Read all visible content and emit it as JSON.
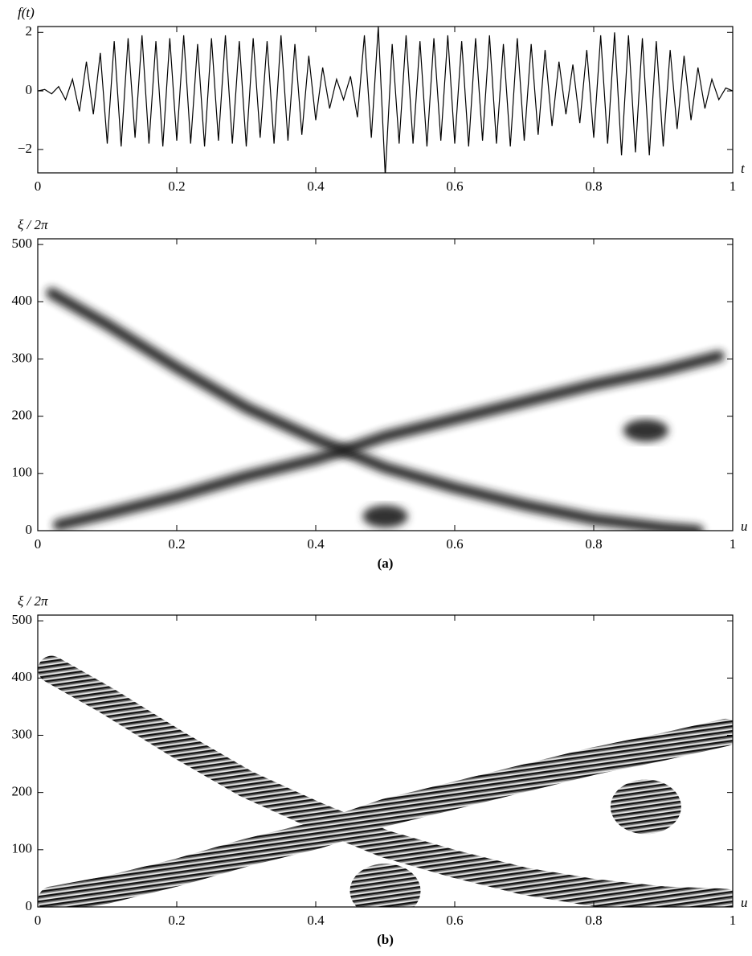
{
  "chart_data": [
    {
      "type": "line",
      "ylabel": "f(t)",
      "xlabel": "t",
      "x": [
        0,
        0.01,
        0.02,
        0.03,
        0.04,
        0.05,
        0.06,
        0.07,
        0.08,
        0.09,
        0.1,
        0.11,
        0.12,
        0.13,
        0.14,
        0.15,
        0.16,
        0.17,
        0.18,
        0.19,
        0.2,
        0.21,
        0.22,
        0.23,
        0.24,
        0.25,
        0.26,
        0.27,
        0.28,
        0.29,
        0.3,
        0.31,
        0.32,
        0.33,
        0.34,
        0.35,
        0.36,
        0.37,
        0.38,
        0.39,
        0.4,
        0.41,
        0.42,
        0.43,
        0.44,
        0.45,
        0.46,
        0.47,
        0.48,
        0.49,
        0.5,
        0.51,
        0.52,
        0.53,
        0.54,
        0.55,
        0.56,
        0.57,
        0.58,
        0.59,
        0.6,
        0.61,
        0.62,
        0.63,
        0.64,
        0.65,
        0.66,
        0.67,
        0.68,
        0.69,
        0.7,
        0.71,
        0.72,
        0.73,
        0.74,
        0.75,
        0.76,
        0.77,
        0.78,
        0.79,
        0.8,
        0.81,
        0.82,
        0.83,
        0.84,
        0.85,
        0.86,
        0.87,
        0.88,
        0.89,
        0.9,
        0.91,
        0.92,
        0.93,
        0.94,
        0.95,
        0.96,
        0.97,
        0.98,
        0.99,
        1
      ],
      "values": [
        0,
        0.05,
        -0.1,
        0.15,
        -0.3,
        0.4,
        -0.7,
        1.0,
        -0.8,
        1.3,
        -1.8,
        1.7,
        -1.9,
        1.8,
        -1.6,
        1.9,
        -1.8,
        1.7,
        -1.9,
        1.8,
        -1.7,
        1.9,
        -1.8,
        1.6,
        -1.9,
        1.8,
        -1.7,
        1.9,
        -1.8,
        1.7,
        -1.9,
        1.8,
        -1.6,
        1.7,
        -1.8,
        1.9,
        -1.7,
        1.6,
        -1.5,
        1.2,
        -1.0,
        0.8,
        -0.6,
        0.4,
        -0.3,
        0.5,
        -0.9,
        1.9,
        -1.6,
        2.2,
        -2.9,
        1.6,
        -1.8,
        1.9,
        -1.8,
        1.7,
        -1.9,
        1.8,
        -1.7,
        1.9,
        -1.8,
        1.7,
        -1.9,
        1.8,
        -1.7,
        1.9,
        -1.8,
        1.6,
        -1.9,
        1.8,
        -1.7,
        1.6,
        -1.5,
        1.4,
        -1.2,
        1.0,
        -0.8,
        0.9,
        -1.1,
        1.4,
        -1.6,
        1.9,
        -1.8,
        2.0,
        -2.2,
        1.9,
        -2.1,
        1.8,
        -2.2,
        1.7,
        -1.9,
        1.4,
        -1.3,
        1.2,
        -1.0,
        0.8,
        -0.6,
        0.4,
        -0.3,
        0.1,
        0
      ],
      "color": "#000000",
      "xlim": [
        0,
        1
      ],
      "xticks": [
        0,
        0.2,
        0.4,
        0.6,
        0.8,
        1
      ],
      "ylim": [
        -2.8,
        2.2
      ],
      "yticks": [
        {
          "value": -2,
          "label": "−2"
        },
        0,
        2
      ]
    },
    {
      "type": "spectrogram",
      "ylabel": "ξ / 2π",
      "xlabel": "u",
      "caption": "(a)",
      "ridges": [
        {
          "x": [
            0.02,
            0.1,
            0.2,
            0.3,
            0.4,
            0.44,
            0.5,
            0.6,
            0.7,
            0.8,
            0.9,
            0.95
          ],
          "y": [
            415,
            360,
            285,
            215,
            160,
            140,
            110,
            75,
            45,
            20,
            5,
            0
          ]
        },
        {
          "x": [
            0.03,
            0.1,
            0.2,
            0.3,
            0.4,
            0.44,
            0.5,
            0.6,
            0.7,
            0.8,
            0.9,
            0.98
          ],
          "y": [
            10,
            30,
            60,
            95,
            125,
            140,
            165,
            195,
            225,
            255,
            280,
            305
          ]
        }
      ],
      "blobs": [
        {
          "x": 0.5,
          "y": 25
        },
        {
          "x": 0.875,
          "y": 175
        }
      ],
      "xlim": [
        0,
        1
      ],
      "xticks": [
        0,
        0.2,
        0.4,
        0.6,
        0.8,
        1
      ],
      "ylim": [
        0,
        510
      ],
      "yticks": [
        0,
        100,
        200,
        300,
        400,
        500
      ]
    },
    {
      "type": "phase",
      "ylabel": "ξ / 2π",
      "xlabel": "u",
      "caption": "(b)",
      "ridges": [
        {
          "x": [
            0.02,
            0.1,
            0.2,
            0.3,
            0.4,
            0.44,
            0.5,
            0.6,
            0.7,
            0.8,
            0.9,
            0.99
          ],
          "y": [
            415,
            360,
            285,
            215,
            160,
            140,
            110,
            75,
            45,
            25,
            12,
            8
          ]
        },
        {
          "x": [
            0.02,
            0.1,
            0.2,
            0.3,
            0.4,
            0.44,
            0.5,
            0.6,
            0.7,
            0.8,
            0.9,
            0.99
          ],
          "y": [
            12,
            30,
            60,
            95,
            125,
            140,
            165,
            195,
            225,
            255,
            280,
            305
          ]
        }
      ],
      "blobs": [
        {
          "x": 0.5,
          "y": 28
        },
        {
          "x": 0.875,
          "y": 175
        }
      ],
      "xlim": [
        0,
        1
      ],
      "xticks": [
        0,
        0.2,
        0.4,
        0.6,
        0.8,
        1
      ],
      "ylim": [
        0,
        510
      ],
      "yticks": [
        0,
        100,
        200,
        300,
        400,
        500
      ]
    }
  ]
}
